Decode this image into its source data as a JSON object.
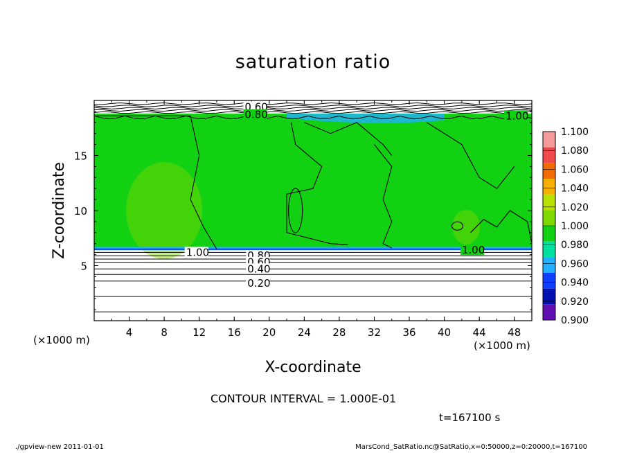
{
  "chart_data": {
    "type": "heatmap",
    "title": "saturation ratio",
    "xlabel": "X-coordinate",
    "ylabel": "Z-coordinate",
    "x_unit_left": "(×1000 m)",
    "x_unit_right": "(×1000 m)",
    "xlim": [
      0,
      50
    ],
    "ylim": [
      0,
      20
    ],
    "x_ticks": [
      4,
      8,
      12,
      16,
      20,
      24,
      28,
      32,
      36,
      40,
      44,
      48
    ],
    "y_ticks": [
      5,
      10,
      15
    ],
    "contour_interval_text": "CONTOUR INTERVAL = 1.000E-01",
    "time_text": "t=167100 s",
    "contour_labels": [
      {
        "text": "0.60",
        "x": 17.2,
        "z": 19.4
      },
      {
        "text": "0.80",
        "x": 17.2,
        "z": 18.7
      },
      {
        "text": "1.00",
        "x": 47.0,
        "z": 18.6
      },
      {
        "text": "1.00",
        "x": 10.5,
        "z": 6.2
      },
      {
        "text": "1.00",
        "x": 42.0,
        "z": 6.4
      },
      {
        "text": "0.80",
        "x": 17.5,
        "z": 5.9
      },
      {
        "text": "0.60",
        "x": 17.5,
        "z": 5.3
      },
      {
        "text": "0.40",
        "x": 17.5,
        "z": 4.7
      },
      {
        "text": "0.20",
        "x": 17.5,
        "z": 3.4
      }
    ],
    "colorbar": {
      "labels": [
        "1.100",
        "1.080",
        "1.060",
        "1.040",
        "1.020",
        "1.000",
        "0.980",
        "0.960",
        "0.940",
        "0.920",
        "0.900"
      ],
      "colors": [
        "#f59a9a",
        "#f04a4a",
        "#f26a00",
        "#f5b000",
        "#b8e000",
        "#7fd800",
        "#12d012",
        "#00e0a0",
        "#20b0ff",
        "#1040ff",
        "#0010b0",
        "#6010b0"
      ]
    },
    "field_summary": "Region between z≈6.4 and z≈18.8 is mostly ~1.00 (green); above 19 and below 6 values fall off, with horizontal contours at 0.20–0.80 below."
  },
  "footer": {
    "left": "./gpview-new   2011-01-01",
    "right": "MarsCond_SatRatio.nc@SatRatio,x=0:50000,z=0:20000,t=167100"
  }
}
